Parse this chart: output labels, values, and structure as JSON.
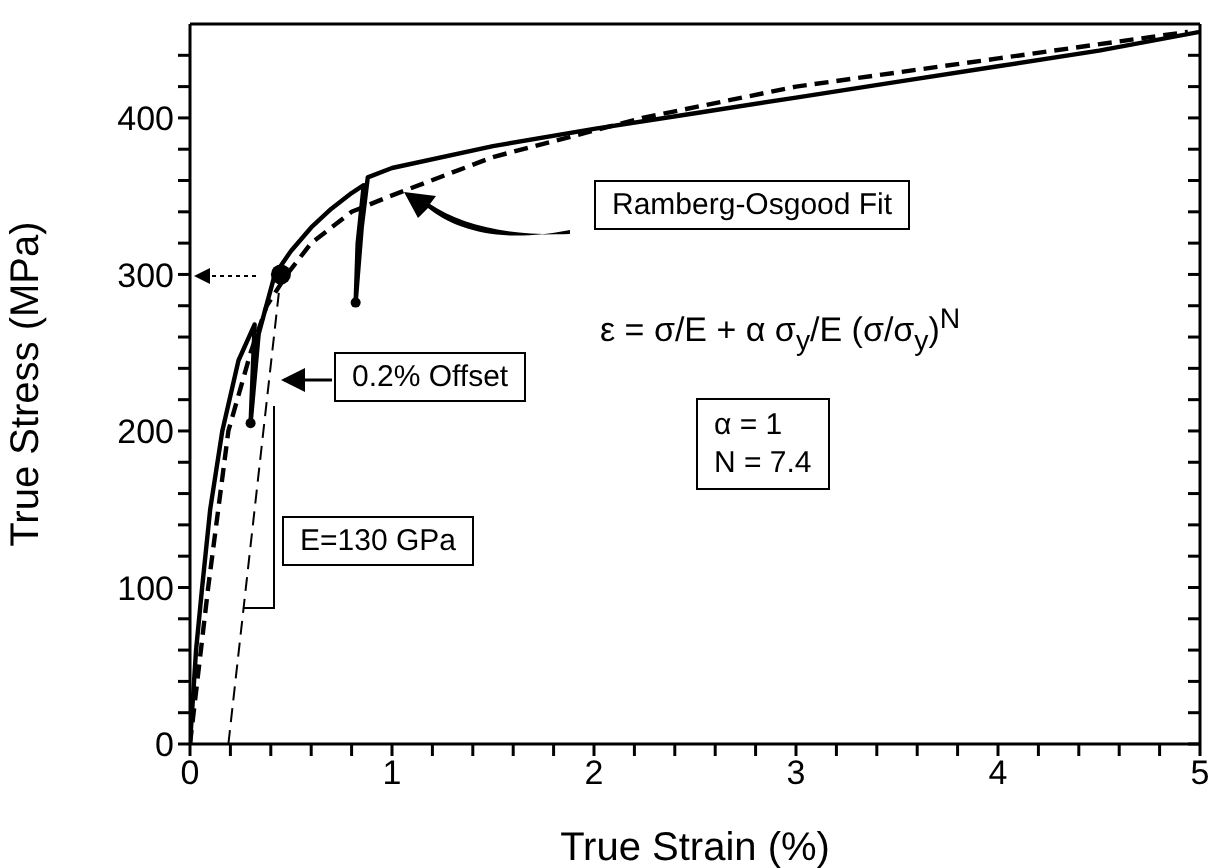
{
  "chart_data": {
    "type": "line",
    "xlabel": "True Strain  (%)",
    "ylabel": "True Stress  (MPa)",
    "xlim": [
      0,
      5
    ],
    "ylim": [
      0,
      460
    ],
    "xticks": [
      0,
      {
        "value": 0.2,
        "label": null
      },
      {
        "value": 0.4,
        "label": null
      },
      {
        "value": 0.6,
        "label": null
      },
      {
        "value": 0.8,
        "label": null
      },
      1,
      {
        "value": 1.2,
        "label": null
      },
      {
        "value": 1.4,
        "label": null
      },
      {
        "value": 1.6,
        "label": null
      },
      {
        "value": 1.8,
        "label": null
      },
      2,
      {
        "value": 2.2,
        "label": null
      },
      {
        "value": 2.4,
        "label": null
      },
      {
        "value": 2.6,
        "label": null
      },
      {
        "value": 2.8,
        "label": null
      },
      3,
      {
        "value": 3.2,
        "label": null
      },
      {
        "value": 3.4,
        "label": null
      },
      {
        "value": 3.6,
        "label": null
      },
      {
        "value": 3.8,
        "label": null
      },
      4,
      {
        "value": 4.2,
        "label": null
      },
      {
        "value": 4.4,
        "label": null
      },
      {
        "value": 4.6,
        "label": null
      },
      {
        "value": 4.8,
        "label": null
      },
      5
    ],
    "yticks": [
      0,
      {
        "value": 20,
        "label": null
      },
      {
        "value": 40,
        "label": null
      },
      {
        "value": 60,
        "label": null
      },
      {
        "value": 80,
        "label": null
      },
      100,
      {
        "value": 120,
        "label": null
      },
      {
        "value": 140,
        "label": null
      },
      {
        "value": 160,
        "label": null
      },
      {
        "value": 180,
        "label": null
      },
      200,
      {
        "value": 220,
        "label": null
      },
      {
        "value": 240,
        "label": null
      },
      {
        "value": 260,
        "label": null
      },
      {
        "value": 280,
        "label": null
      },
      300,
      {
        "value": 320,
        "label": null
      },
      {
        "value": 340,
        "label": null
      },
      {
        "value": 360,
        "label": null
      },
      {
        "value": 380,
        "label": null
      },
      400,
      {
        "value": 420,
        "label": null
      },
      {
        "value": 440,
        "label": null
      }
    ],
    "series": [
      {
        "color": "#000000",
        "line_style": "solid",
        "x": [
          0,
          0.03,
          0.06,
          0.1,
          0.16,
          0.24,
          0.32,
          0.3,
          0.34,
          0.42,
          0.5,
          0.6,
          0.7,
          0.8,
          0.86,
          0.83,
          0.82,
          0.85,
          0.88,
          1.0,
          1.5,
          2.0,
          2.5,
          3.0,
          3.5,
          4.0,
          4.5,
          5.0
        ],
        "values": [
          0,
          60,
          100,
          150,
          200,
          245,
          268,
          205,
          262,
          300,
          315,
          330,
          342,
          352,
          357,
          320,
          282,
          330,
          362,
          368,
          382,
          393,
          403,
          413,
          423,
          433,
          443,
          455
        ]
      },
      {
        "color": "#000000",
        "line_style": "dashed",
        "x": [
          0,
          0.09,
          0.19,
          0.3,
          0.38,
          0.48,
          0.6,
          0.8,
          0.99,
          1.5,
          2.24,
          3.0,
          4.0,
          4.94
        ],
        "values": [
          0,
          100,
          200,
          250,
          280,
          300,
          320,
          340,
          350,
          375,
          400,
          420,
          438,
          455
        ]
      },
      {
        "color": "#000000",
        "line_style": "dashed",
        "x": [
          0.19,
          0.45
        ],
        "values": [
          0,
          300
        ]
      },
      {
        "type": "scatter",
        "color": "#000000",
        "marker": "circle",
        "x": [
          0.45
        ],
        "values": [
          300
        ]
      },
      {
        "type": "scatter",
        "color": "#000000",
        "marker": "circle",
        "x": [
          0.3,
          0.82
        ],
        "values": [
          205,
          282
        ]
      }
    ],
    "annotations": [
      "Ramberg-Osgood Fit",
      "ε = σ/E + α σ$_{y}$/E (σ/σ$_{y}$)$^{N}$",
      "α = 1",
      "N = 7.4",
      "0.2% Offset",
      "E=130 GPa"
    ]
  }
}
